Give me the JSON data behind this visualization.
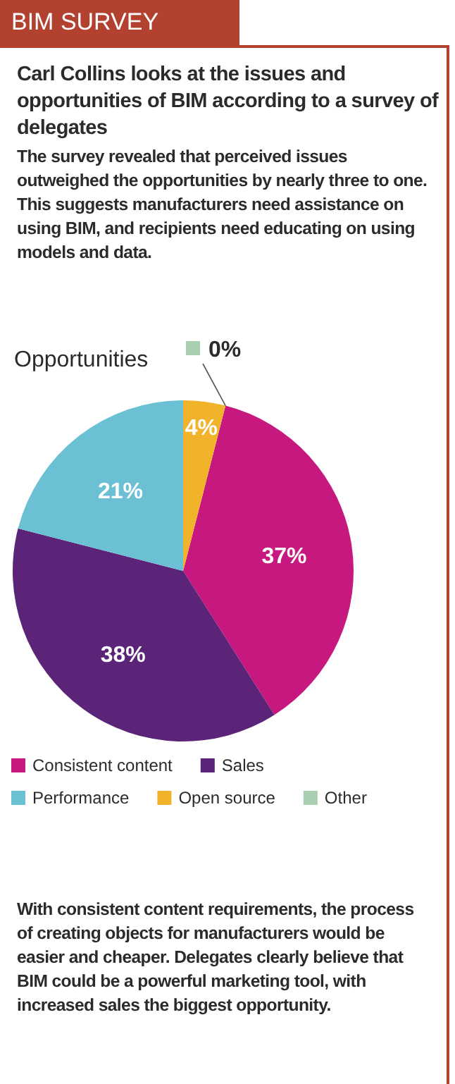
{
  "chart_data": {
    "type": "pie",
    "title": "BIM SURVEY",
    "subtitle": "Carl Collins looks at the issues and opportunities of BIM according to a survey of delegates",
    "annotations": [
      "The survey revealed that perceived issues outweighed the opportunities by nearly three to one. This suggests manufacturers need assistance on using BIM, and recipients need educating on using models and data.",
      "Opportunities",
      "With consistent content requirements, the process of creating objects for manufacturers would be easier and cheaper. Delegates clearly believe that BIM could be a powerful marketing tool, with increased sales the biggest opportunity."
    ],
    "categories": [
      "Consistent content",
      "Sales",
      "Performance",
      "Open source",
      "Other"
    ],
    "values": [
      37,
      38,
      21,
      4,
      0
    ],
    "value_labels": [
      "37%",
      "38%",
      "21%",
      "4%",
      "0%"
    ],
    "colors": [
      "#c6187e",
      "#5c2479",
      "#6cc0d4",
      "#f0b32a",
      "#a9cfb1"
    ],
    "legend": "bottom"
  }
}
